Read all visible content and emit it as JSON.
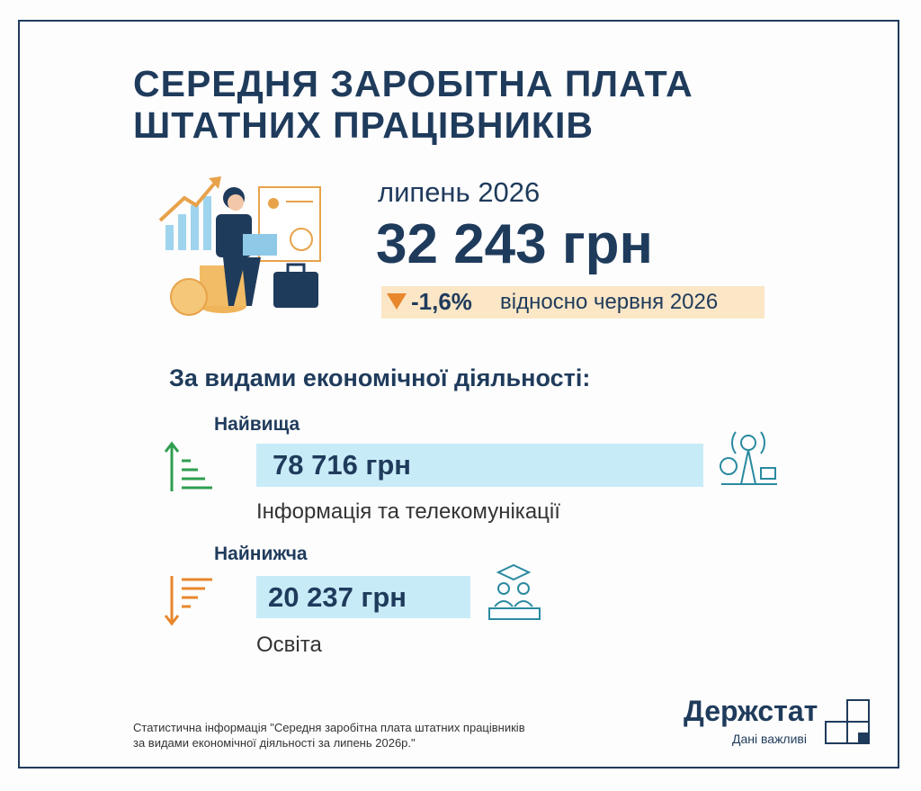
{
  "header": {
    "title": [
      "СЕРЕДНЯ ЗАРОБІТНА ПЛАТА",
      "ШТАТНИХ ПРАЦІВНИКІВ"
    ]
  },
  "summary": {
    "period": "липень 2026",
    "value": "32 243 грн",
    "change": "-1,6%",
    "change_note": "відносно червня 2026"
  },
  "section": {
    "title": "За видами економічної діяльності:",
    "highest": {
      "label": "Найвища",
      "value": "78 716 грн",
      "activity": "Інформація та телекомунікації"
    },
    "lowest": {
      "label": "Найнижча",
      "value": "20 237 грн",
      "activity": "Освіта"
    }
  },
  "footer": {
    "note": [
      "Статистична інформація \"Середня заробітна плата штатних працівників",
      "за видами економічної діяльності за липень 2026р.\""
    ],
    "brand": "Держстат",
    "slogan": "Дані важливі"
  }
}
